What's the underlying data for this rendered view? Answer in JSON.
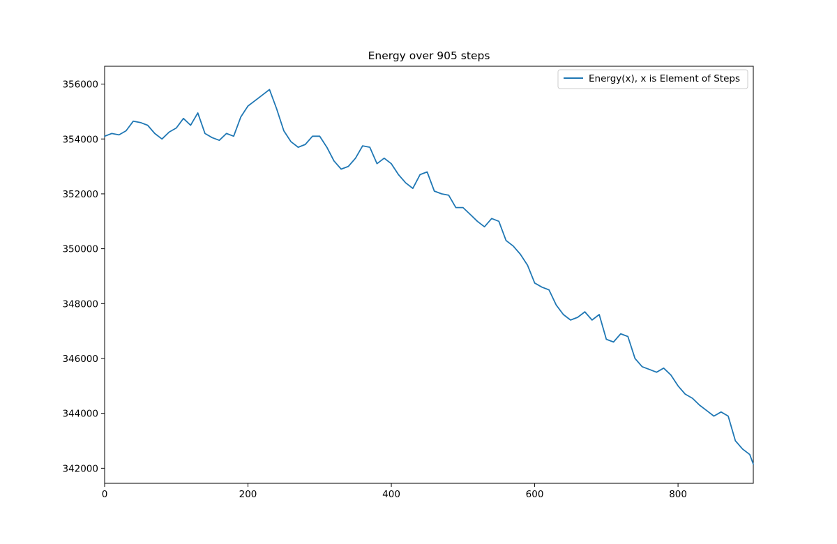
{
  "chart_data": {
    "type": "line",
    "title": "Energy over  905 steps",
    "xlabel": "",
    "ylabel": "",
    "xlim": [
      0,
      905
    ],
    "ylim": [
      341450,
      356650
    ],
    "x_ticks": [
      0,
      200,
      400,
      600,
      800
    ],
    "y_ticks": [
      342000,
      344000,
      346000,
      348000,
      350000,
      352000,
      354000,
      356000
    ],
    "grid": false,
    "legend_position": "top-right",
    "series": [
      {
        "name": "Energy(x), x is Element of Steps",
        "color": "#1f77b4",
        "x": [
          0,
          10,
          20,
          30,
          40,
          50,
          60,
          70,
          80,
          90,
          100,
          110,
          120,
          130,
          140,
          150,
          160,
          170,
          180,
          190,
          200,
          210,
          220,
          230,
          240,
          250,
          260,
          270,
          280,
          290,
          300,
          310,
          320,
          330,
          340,
          350,
          360,
          370,
          380,
          390,
          400,
          410,
          420,
          430,
          440,
          450,
          460,
          470,
          480,
          490,
          500,
          510,
          520,
          530,
          540,
          550,
          560,
          570,
          580,
          590,
          600,
          610,
          620,
          630,
          640,
          650,
          660,
          670,
          680,
          690,
          700,
          710,
          720,
          730,
          740,
          750,
          760,
          770,
          780,
          790,
          800,
          810,
          820,
          830,
          840,
          850,
          860,
          870,
          880,
          890,
          900,
          905
        ],
        "y": [
          354100,
          354200,
          354150,
          354300,
          354650,
          354600,
          354500,
          354200,
          354000,
          354250,
          354400,
          354750,
          354500,
          354950,
          354200,
          354050,
          353950,
          354200,
          354100,
          354800,
          355200,
          355400,
          355600,
          355800,
          355100,
          354300,
          353900,
          353700,
          353800,
          354100,
          354100,
          353700,
          353200,
          352900,
          353000,
          353300,
          353750,
          353700,
          353100,
          353300,
          353100,
          352700,
          352400,
          352200,
          352700,
          352800,
          352100,
          352000,
          351950,
          351500,
          351500,
          351250,
          351000,
          350800,
          351100,
          351000,
          350300,
          350100,
          349800,
          349400,
          348750,
          348600,
          348500,
          347950,
          347600,
          347400,
          347500,
          347700,
          347400,
          347600,
          346700,
          346600,
          346900,
          346800,
          346000,
          345700,
          345600,
          345500,
          345650,
          345400,
          345000,
          344700,
          344550,
          344300,
          344100,
          343900,
          344050,
          343900,
          343000,
          342700,
          342500,
          342150
        ]
      }
    ]
  }
}
